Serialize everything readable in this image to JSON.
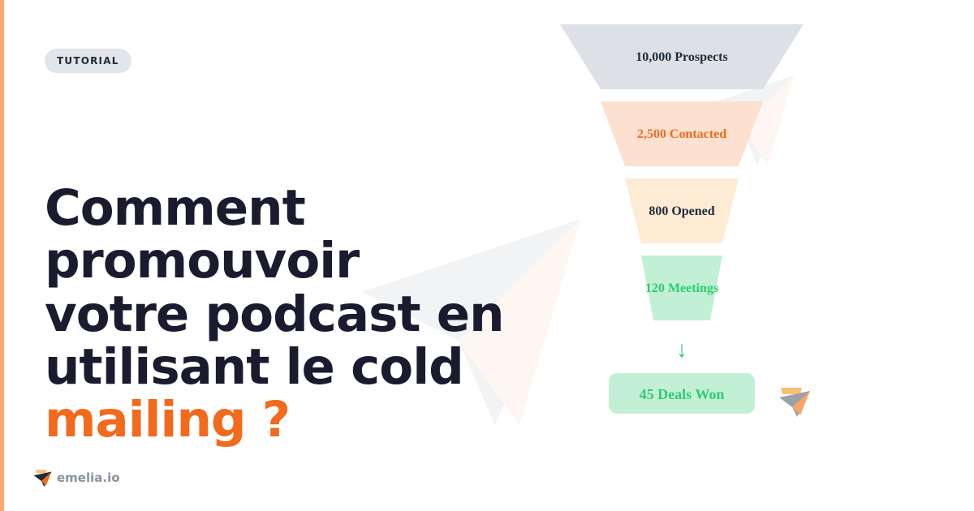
{
  "badge": "TUTORIAL",
  "title": {
    "line1": "Comment promouvoir",
    "line2": "votre podcast en",
    "line3": "utilisant le cold",
    "accent": "mailing ?"
  },
  "brand": "emelia.io",
  "colors": {
    "accent": "#f26a1b",
    "edge": "#f9a86f",
    "text": "#1b1b2f"
  },
  "funnel": {
    "stages": [
      {
        "label": "10,000 Prospects",
        "fill": "#dde0e4",
        "color": "#1e2b3c"
      },
      {
        "label": "2,500 Contacted",
        "fill": "#fce0d0",
        "color": "#f26a1b"
      },
      {
        "label": "800 Opened",
        "fill": "#fdebd3",
        "color": "#1e2b3c"
      },
      {
        "label": "120 Meetings",
        "fill": "#c2f0d5",
        "color": "#2ecc71"
      }
    ],
    "arrow": "↓",
    "result": {
      "label": "45 Deals Won",
      "fill": "#c2f0d5",
      "color": "#2ecc71"
    }
  }
}
